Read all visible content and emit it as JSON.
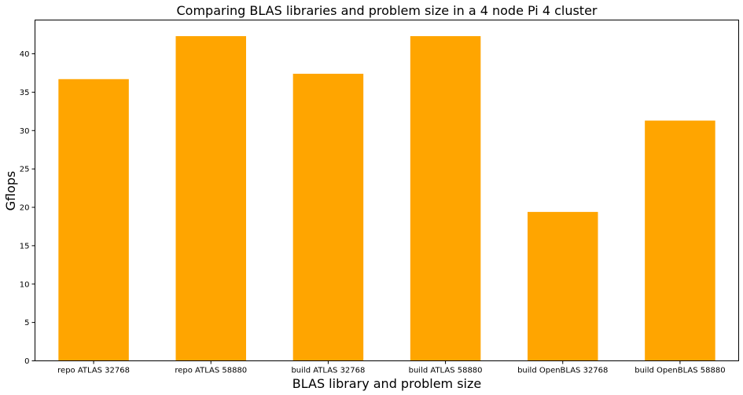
{
  "chart_data": {
    "type": "bar",
    "title": "Comparing BLAS libraries and problem size in a 4 node Pi 4 cluster",
    "xlabel": "BLAS library and problem size",
    "ylabel": "Gflops",
    "categories": [
      "repo ATLAS 32768",
      "repo ATLAS 58880",
      "build ATLAS 32768",
      "build ATLAS 58880",
      "build OpenBLAS 32768",
      "build OpenBLAS 58880"
    ],
    "values": [
      36.7,
      42.3,
      37.4,
      42.3,
      19.4,
      31.3
    ],
    "ylim": [
      0,
      44.4
    ],
    "yticks": [
      0,
      5,
      10,
      15,
      20,
      25,
      30,
      35,
      40
    ],
    "bar_color": "#FFA500",
    "grid": false
  }
}
